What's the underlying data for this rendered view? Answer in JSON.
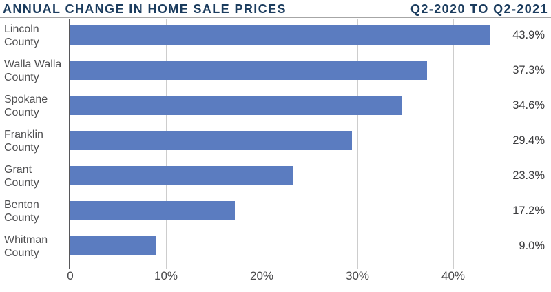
{
  "header": {
    "title": "ANNUAL CHANGE IN HOME SALE PRICES",
    "period": "Q2-2020 TO Q2-2021"
  },
  "colors": {
    "accent_navy": "#1b3c5e",
    "bar_blue": "#5b7cc0"
  },
  "chart_data": {
    "type": "bar",
    "orientation": "horizontal",
    "title": "ANNUAL CHANGE IN HOME SALE PRICES",
    "subtitle": "Q2-2020 TO Q2-2021",
    "categories": [
      "Lincoln County",
      "Walla Walla County",
      "Spokane County",
      "Franklin County",
      "Grant County",
      "Benton County",
      "Whitman County"
    ],
    "category_lines": [
      [
        "Lincoln",
        "County"
      ],
      [
        "Walla Walla",
        "County"
      ],
      [
        "Spokane",
        "County"
      ],
      [
        "Franklin",
        "County"
      ],
      [
        "Grant",
        "County"
      ],
      [
        "Benton",
        "County"
      ],
      [
        "Whitman",
        "County"
      ]
    ],
    "values": [
      43.9,
      37.3,
      34.6,
      29.4,
      23.3,
      17.2,
      9.0
    ],
    "value_labels": [
      "43.9%",
      "37.3%",
      "34.6%",
      "29.4%",
      "23.3%",
      "17.2%",
      "9.0%"
    ],
    "xlabel": "",
    "ylabel": "",
    "xlim": [
      0,
      50
    ],
    "x_ticks": [
      {
        "value": 0,
        "label": "0"
      },
      {
        "value": 10,
        "label": "10%"
      },
      {
        "value": 20,
        "label": "20%"
      },
      {
        "value": 30,
        "label": "30%"
      },
      {
        "value": 40,
        "label": "40%"
      }
    ],
    "grid": true,
    "legend": "none",
    "bar_color": "#5b7cc0"
  }
}
